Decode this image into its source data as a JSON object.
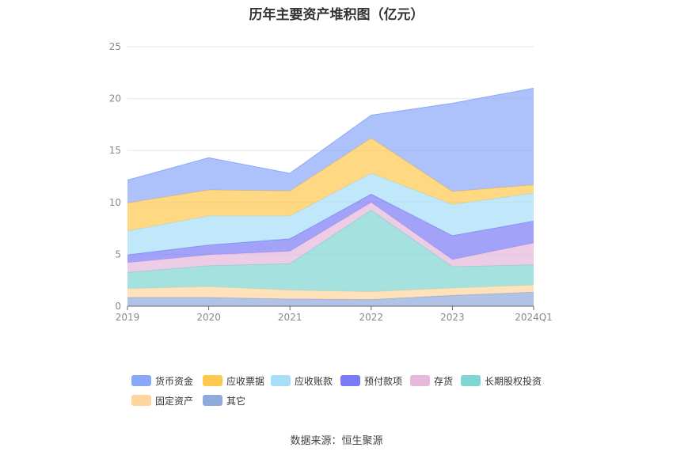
{
  "chart_data": {
    "type": "area",
    "stacked": true,
    "title": "历年主要资产堆积图（亿元）",
    "categories": [
      "2019",
      "2020",
      "2021",
      "2022",
      "2023",
      "2024Q1"
    ],
    "ylim": [
      0,
      25
    ],
    "yticks": [
      0,
      5,
      10,
      15,
      20,
      25
    ],
    "grid": true,
    "legend_position": "bottom",
    "series": [
      {
        "name": "其它",
        "color": "#8faadc",
        "values": [
          0.85,
          0.85,
          0.7,
          0.65,
          1.05,
          1.35
        ]
      },
      {
        "name": "固定资产",
        "color": "#ffd59e",
        "values": [
          0.85,
          1.05,
          0.85,
          0.75,
          0.7,
          0.7
        ]
      },
      {
        "name": "长期股权投资",
        "color": "#7fd6d2",
        "values": [
          1.55,
          2.0,
          2.55,
          7.85,
          2.05,
          1.95
        ]
      },
      {
        "name": "存货",
        "color": "#e5b8dc",
        "values": [
          0.95,
          1.05,
          1.2,
          0.75,
          0.7,
          2.1
        ]
      },
      {
        "name": "预付款项",
        "color": "#7b7cf5",
        "values": [
          0.75,
          0.95,
          1.2,
          0.8,
          2.3,
          2.1
        ]
      },
      {
        "name": "应收账款",
        "color": "#a6def8",
        "values": [
          2.3,
          2.8,
          2.2,
          2.0,
          3.0,
          2.7
        ]
      },
      {
        "name": "应收票据",
        "color": "#ffc850",
        "values": [
          2.7,
          2.5,
          2.4,
          3.4,
          1.25,
          0.8
        ]
      },
      {
        "name": "货币资金",
        "color": "#8aa8f8",
        "values": [
          2.2,
          3.1,
          1.7,
          2.2,
          8.5,
          9.3
        ]
      }
    ]
  },
  "legend_order": [
    "货币资金",
    "应收票据",
    "应收账款",
    "预付款项",
    "存货",
    "长期股权投资",
    "固定资产",
    "其它"
  ],
  "source_note": "数据来源：恒生聚源"
}
